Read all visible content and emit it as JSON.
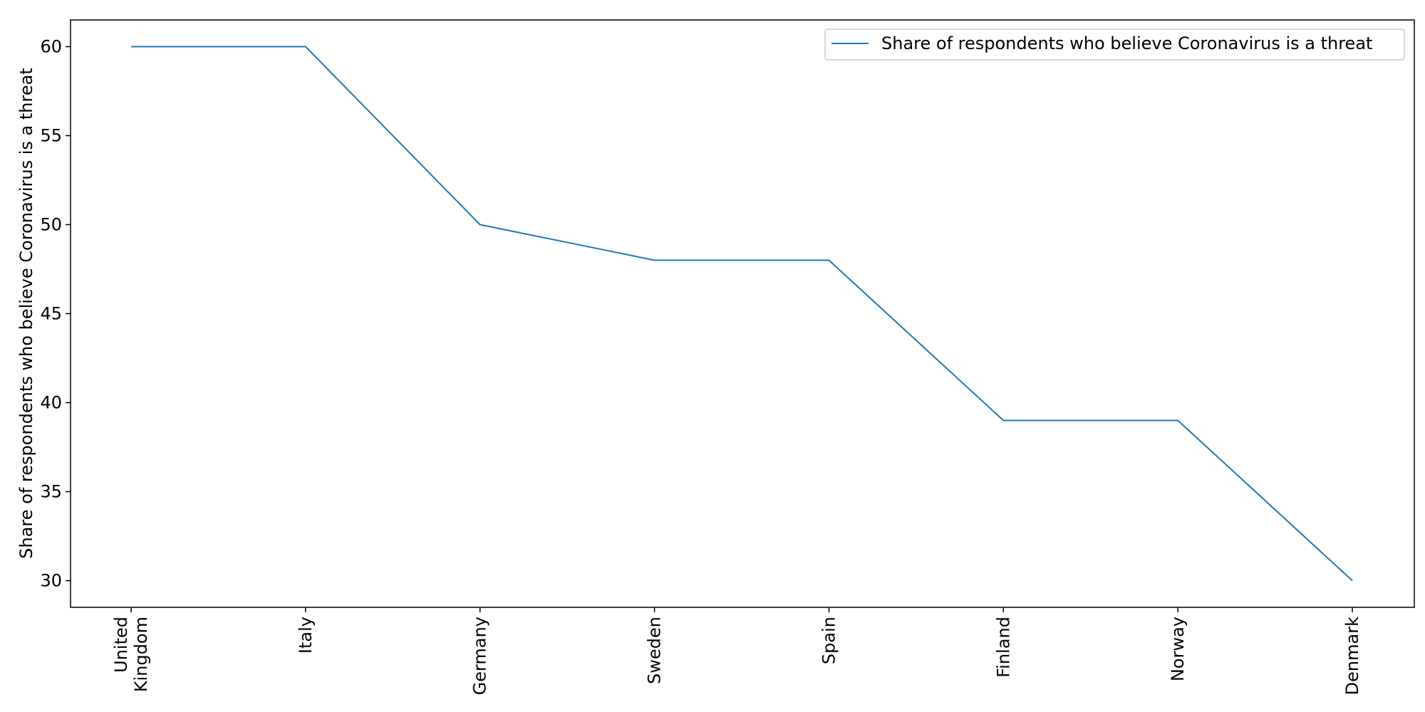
{
  "chart_data": {
    "type": "line",
    "categories": [
      "United\nKingdom",
      "Italy",
      "Germany",
      "Sweden",
      "Spain",
      "Finland",
      "Norway",
      "Denmark"
    ],
    "series": [
      {
        "name": "Share of respondents who believe Coronavirus is a threat",
        "values": [
          60,
          60,
          50,
          48,
          48,
          39,
          39,
          30
        ]
      }
    ],
    "title": "",
    "xlabel": "",
    "ylabel": "Share of respondents who believe Coronavirus is a threat",
    "ylim": [
      28.5,
      61.5
    ],
    "yticks": [
      30,
      35,
      40,
      45,
      50,
      55,
      60
    ],
    "grid": false,
    "legend_position": "top-right",
    "line_color": "#1f77b4"
  }
}
